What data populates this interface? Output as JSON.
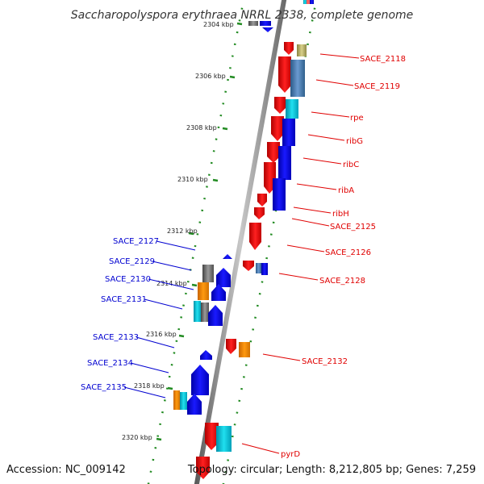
{
  "title": "Saccharopolyspora erythraea NRRL 2338, complete genome",
  "accession": "Accession: NC_009142",
  "topology": "Topology: circular; Length: 8,212,805 bp; Genes: 7,259",
  "colors": {
    "forward_strand": "#ff0000",
    "reverse_strand": "#0000ff",
    "forward_label": "#e00000",
    "reverse_label": "#0000d0",
    "backbone": "#888888",
    "scale_ticks": "#228b22",
    "category_orange": "#ff8c00",
    "category_cyan": "#00c8d8",
    "category_steelblue": "#4682b4",
    "category_khaki": "#bdb76b",
    "category_gray": "#777777"
  },
  "scale": {
    "ticks": [
      {
        "position_kbp": 2304,
        "label": "2304 kbp"
      },
      {
        "position_kbp": 2306,
        "label": "2306 kbp"
      },
      {
        "position_kbp": 2308,
        "label": "2308 kbp"
      },
      {
        "position_kbp": 2310,
        "label": "2310 kbp"
      },
      {
        "position_kbp": 2312,
        "label": "2312 kbp"
      },
      {
        "position_kbp": 2314,
        "label": "2314 kbp"
      },
      {
        "position_kbp": 2316,
        "label": "2316 kbp"
      },
      {
        "position_kbp": 2318,
        "label": "2318 kbp"
      },
      {
        "position_kbp": 2320,
        "label": "2320 kbp"
      }
    ]
  },
  "forward_genes": [
    {
      "label": "SACE_2118",
      "strand": "forward"
    },
    {
      "label": "SACE_2119",
      "strand": "forward"
    },
    {
      "label": "rpe",
      "strand": "forward"
    },
    {
      "label": "ribG",
      "strand": "forward"
    },
    {
      "label": "ribC",
      "strand": "forward"
    },
    {
      "label": "ribA",
      "strand": "forward"
    },
    {
      "label": "ribH",
      "strand": "forward"
    },
    {
      "label": "SACE_2125",
      "strand": "forward"
    },
    {
      "label": "SACE_2126",
      "strand": "forward"
    },
    {
      "label": "SACE_2128",
      "strand": "forward"
    },
    {
      "label": "SACE_2132",
      "strand": "forward"
    },
    {
      "label": "pyrD",
      "strand": "forward"
    }
  ],
  "reverse_genes": [
    {
      "label": "SACE_2127",
      "strand": "reverse"
    },
    {
      "label": "SACE_2129",
      "strand": "reverse"
    },
    {
      "label": "SACE_2130",
      "strand": "reverse"
    },
    {
      "label": "SACE_2131",
      "strand": "reverse"
    },
    {
      "label": "SACE_2133",
      "strand": "reverse"
    },
    {
      "label": "SACE_2134",
      "strand": "reverse"
    },
    {
      "label": "SACE_2135",
      "strand": "reverse"
    }
  ]
}
